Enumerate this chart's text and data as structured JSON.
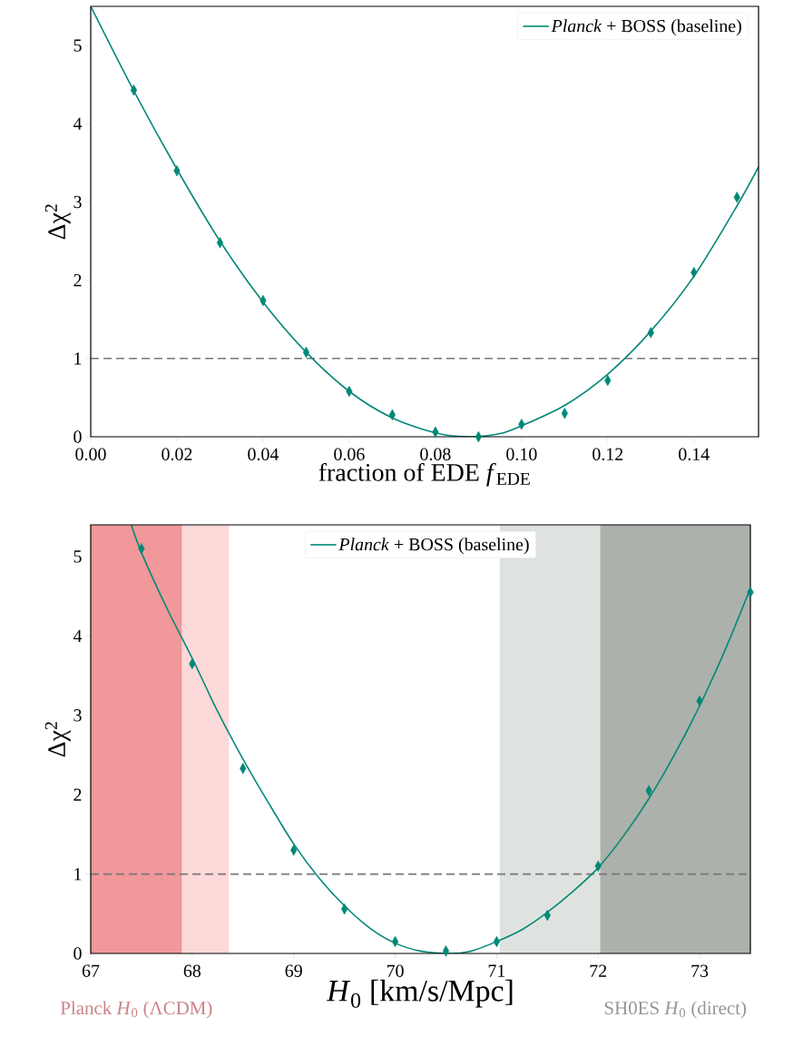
{
  "chart_data": [
    {
      "type": "line",
      "xlabel": "fraction of EDE *f*$_{EDE}$",
      "ylabel": "Δχ$^{2}$",
      "xlim": [
        0,
        0.155
      ],
      "ylim": [
        0,
        5.5
      ],
      "xticks": [
        {
          "value": 0,
          "label": "0.00"
        },
        {
          "value": 0.02,
          "label": "0.02"
        },
        {
          "value": 0.04,
          "label": "0.04"
        },
        {
          "value": 0.06,
          "label": "0.06"
        },
        {
          "value": 0.08,
          "label": "0.08"
        },
        {
          "value": 0.1,
          "label": "0.10"
        },
        {
          "value": 0.12,
          "label": "0.12"
        },
        {
          "value": 0.14,
          "label": "0.14"
        }
      ],
      "yticks": [
        0,
        1,
        2,
        3,
        4,
        5
      ],
      "legend": "top right",
      "ref_lines": [
        {
          "axis": "y",
          "value": 1,
          "color": "#777777",
          "line_style": "dashed"
        }
      ],
      "series": [
        {
          "type": "scatter",
          "color": "#008877",
          "marker": "diamond",
          "x": [
            0.01,
            0.02,
            0.03,
            0.04,
            0.05,
            0.06,
            0.07,
            0.08,
            0.09,
            0.1,
            0.11,
            0.12,
            0.13,
            0.14,
            0.15
          ],
          "values": [
            4.43,
            3.4,
            2.48,
            1.74,
            1.08,
            0.58,
            0.28,
            0.06,
            0.0,
            0.16,
            0.3,
            0.72,
            1.33,
            2.1,
            3.06
          ]
        },
        {
          "name": "*Planck* + BOSS (baseline)",
          "color": "#008877",
          "marker": "none",
          "line_style": "solid",
          "x": [
            0,
            0.01,
            0.02,
            0.03,
            0.04,
            0.05,
            0.06,
            0.07,
            0.08,
            0.088,
            0.095,
            0.1,
            0.11,
            0.12,
            0.13,
            0.14,
            0.15,
            0.155
          ],
          "values": [
            5.5,
            4.42,
            3.42,
            2.5,
            1.72,
            1.08,
            0.58,
            0.24,
            0.05,
            0.0,
            0.04,
            0.14,
            0.4,
            0.8,
            1.35,
            2.05,
            2.95,
            3.45
          ]
        }
      ]
    },
    {
      "type": "line",
      "xlabel": "*H*$_{0}$ [km/s/Mpc]",
      "ylabel": "Δχ$^{2}$",
      "xlim": [
        67,
        73.5
      ],
      "ylim": [
        0,
        5.4
      ],
      "xticks": [
        67,
        68,
        69,
        70,
        71,
        72,
        73
      ],
      "yticks": [
        0,
        1,
        2,
        3,
        4,
        5
      ],
      "legend": "top",
      "ref_lines": [
        {
          "axis": "y",
          "value": 1,
          "color": "#777777",
          "line_style": "dashed"
        }
      ],
      "bands": [
        {
          "axis": "x",
          "from": 67,
          "to": 67.9,
          "color": "#f0989a",
          "label": "Planck *H*$_{0}$ (ΛCDM)"
        },
        {
          "axis": "x",
          "from": 67.9,
          "to": 68.36,
          "color": "#fed9d9"
        },
        {
          "axis": "x",
          "from": 71.03,
          "to": 72.02,
          "color": "#dfe3df"
        },
        {
          "axis": "x",
          "from": 72.02,
          "to": 73.5,
          "color": "#adb1ab",
          "label": "SH0ES *H*$_{0}$ (direct)"
        }
      ],
      "series": [
        {
          "type": "scatter",
          "color": "#008877",
          "marker": "diamond",
          "x": [
            67.5,
            68,
            68.5,
            69,
            69.5,
            70,
            70.5,
            71,
            71.5,
            72,
            72.5,
            73,
            73.5
          ],
          "values": [
            5.1,
            3.65,
            2.33,
            1.3,
            0.56,
            0.15,
            0.03,
            0.15,
            0.48,
            1.1,
            2.05,
            3.18,
            4.55
          ]
        },
        {
          "name": "*Planck* + BOSS (baseline)",
          "color": "#008877",
          "marker": "none",
          "line_style": "solid",
          "x": [
            67.4,
            67.5,
            67.75,
            68,
            68.25,
            68.5,
            68.75,
            69,
            69.25,
            69.5,
            69.75,
            70,
            70.25,
            70.55,
            70.75,
            71,
            71.25,
            71.5,
            71.75,
            72,
            72.25,
            72.5,
            72.75,
            73,
            73.25,
            73.5
          ],
          "values": [
            5.4,
            5.05,
            4.35,
            3.72,
            3.05,
            2.45,
            1.9,
            1.38,
            0.95,
            0.6,
            0.32,
            0.13,
            0.03,
            0.0,
            0.03,
            0.15,
            0.3,
            0.52,
            0.78,
            1.08,
            1.48,
            1.95,
            2.5,
            3.12,
            3.82,
            4.6
          ]
        }
      ]
    }
  ]
}
